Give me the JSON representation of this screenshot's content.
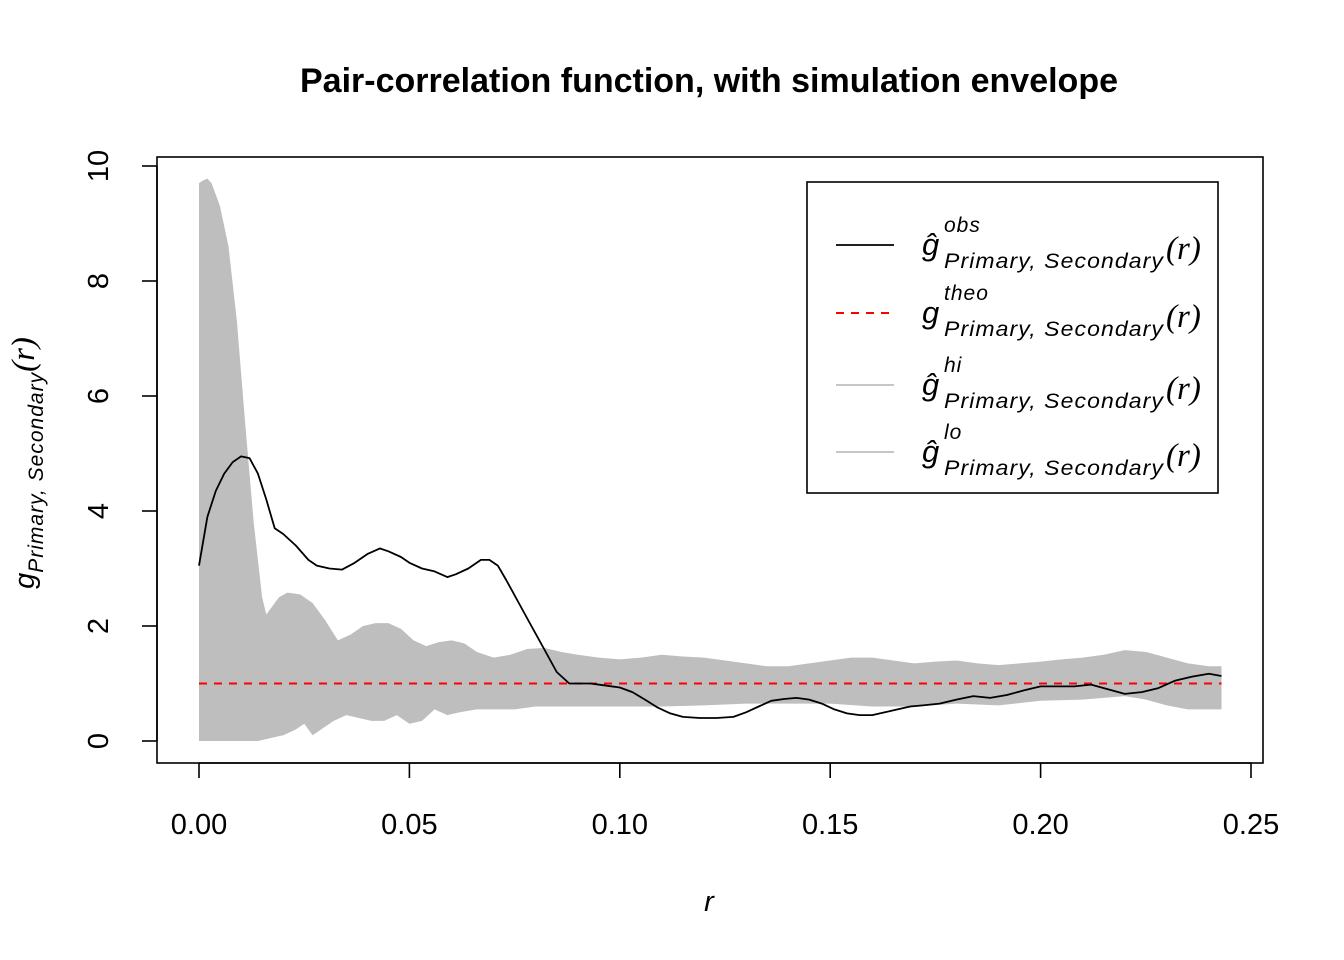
{
  "chart_data": {
    "type": "line",
    "title": "Pair-correlation function, with simulation envelope",
    "xlabel": "r",
    "ylabel": {
      "main": "g",
      "sub": "Primary, Secondary",
      "arg": "(r)"
    },
    "xlim": [
      0,
      0.25
    ],
    "ylim": [
      0,
      10
    ],
    "x_ticks": [
      "0.00",
      "0.05",
      "0.10",
      "0.15",
      "0.20",
      "0.25"
    ],
    "y_ticks": [
      "0",
      "2",
      "4",
      "6",
      "8",
      "10"
    ],
    "grid": false,
    "legend_position": "top-right",
    "colors": {
      "obs": "#000000",
      "theo": "#ff0000",
      "envelope": "#bebebe"
    },
    "legend": [
      {
        "key": "obs",
        "main": "ĝ",
        "sup": "obs",
        "sub": "Primary, Secondary",
        "arg": "(r)",
        "line": "solid",
        "color": "#000000"
      },
      {
        "key": "theo",
        "main": "g",
        "sup": "theo",
        "sub": "Primary, Secondary",
        "arg": "(r)",
        "line": "dashed",
        "color": "#ff0000"
      },
      {
        "key": "hi",
        "main": "ĝ",
        "sup": "hi",
        "sub": "Primary, Secondary",
        "arg": "(r)",
        "line": "solid",
        "color": "#bebebe"
      },
      {
        "key": "lo",
        "main": "ĝ",
        "sup": "lo",
        "sub": "Primary, Secondary",
        "arg": "(r)",
        "line": "solid",
        "color": "#bebebe"
      }
    ],
    "series": [
      {
        "name": "obs",
        "x": [
          0.0,
          0.002,
          0.004,
          0.006,
          0.008,
          0.01,
          0.012,
          0.014,
          0.016,
          0.018,
          0.02,
          0.023,
          0.026,
          0.028,
          0.031,
          0.034,
          0.037,
          0.04,
          0.043,
          0.045,
          0.048,
          0.05,
          0.053,
          0.056,
          0.059,
          0.061,
          0.064,
          0.067,
          0.069,
          0.071,
          0.073,
          0.076,
          0.079,
          0.082,
          0.085,
          0.088,
          0.091,
          0.093,
          0.096,
          0.1,
          0.103,
          0.106,
          0.109,
          0.112,
          0.115,
          0.119,
          0.123,
          0.127,
          0.13,
          0.133,
          0.136,
          0.139,
          0.142,
          0.145,
          0.148,
          0.151,
          0.154,
          0.157,
          0.16,
          0.163,
          0.166,
          0.169,
          0.172,
          0.176,
          0.18,
          0.184,
          0.188,
          0.192,
          0.196,
          0.2,
          0.204,
          0.208,
          0.212,
          0.216,
          0.22,
          0.224,
          0.228,
          0.232,
          0.236,
          0.24,
          0.243
        ],
        "values": [
          3.05,
          3.9,
          4.35,
          4.65,
          4.85,
          4.95,
          4.92,
          4.65,
          4.2,
          3.7,
          3.6,
          3.4,
          3.15,
          3.05,
          3.0,
          2.98,
          3.1,
          3.25,
          3.35,
          3.3,
          3.2,
          3.1,
          3.0,
          2.95,
          2.85,
          2.9,
          3.0,
          3.15,
          3.15,
          3.05,
          2.8,
          2.4,
          2.0,
          1.6,
          1.2,
          1.0,
          1.0,
          1.0,
          0.97,
          0.93,
          0.85,
          0.72,
          0.58,
          0.48,
          0.42,
          0.4,
          0.4,
          0.42,
          0.5,
          0.6,
          0.7,
          0.73,
          0.75,
          0.72,
          0.65,
          0.55,
          0.48,
          0.45,
          0.45,
          0.5,
          0.55,
          0.6,
          0.62,
          0.65,
          0.72,
          0.78,
          0.75,
          0.8,
          0.88,
          0.95,
          0.95,
          0.95,
          0.98,
          0.9,
          0.82,
          0.85,
          0.92,
          1.05,
          1.12,
          1.17,
          1.13
        ]
      },
      {
        "name": "theo",
        "x": [
          0.0,
          0.243
        ],
        "values": [
          1.0,
          1.0
        ]
      },
      {
        "name": "hi",
        "x": [
          0.0,
          0.001,
          0.002,
          0.003,
          0.005,
          0.007,
          0.009,
          0.011,
          0.013,
          0.015,
          0.016,
          0.017,
          0.019,
          0.021,
          0.024,
          0.027,
          0.03,
          0.033,
          0.036,
          0.039,
          0.042,
          0.045,
          0.048,
          0.051,
          0.054,
          0.057,
          0.06,
          0.063,
          0.066,
          0.07,
          0.074,
          0.078,
          0.082,
          0.086,
          0.09,
          0.095,
          0.1,
          0.105,
          0.11,
          0.115,
          0.12,
          0.125,
          0.13,
          0.135,
          0.14,
          0.145,
          0.15,
          0.155,
          0.16,
          0.165,
          0.17,
          0.175,
          0.18,
          0.185,
          0.19,
          0.195,
          0.2,
          0.205,
          0.21,
          0.215,
          0.22,
          0.225,
          0.23,
          0.235,
          0.24,
          0.243
        ],
        "values": [
          9.7,
          9.75,
          9.78,
          9.7,
          9.3,
          8.6,
          7.3,
          5.5,
          3.8,
          2.5,
          2.2,
          2.3,
          2.5,
          2.58,
          2.55,
          2.4,
          2.1,
          1.75,
          1.85,
          2.0,
          2.05,
          2.05,
          1.95,
          1.75,
          1.65,
          1.72,
          1.75,
          1.7,
          1.55,
          1.45,
          1.5,
          1.6,
          1.62,
          1.55,
          1.5,
          1.45,
          1.42,
          1.45,
          1.5,
          1.47,
          1.45,
          1.4,
          1.35,
          1.3,
          1.3,
          1.35,
          1.4,
          1.45,
          1.45,
          1.4,
          1.35,
          1.38,
          1.4,
          1.35,
          1.32,
          1.35,
          1.38,
          1.42,
          1.45,
          1.5,
          1.58,
          1.55,
          1.45,
          1.35,
          1.3,
          1.3
        ]
      },
      {
        "name": "lo",
        "x": [
          0.0,
          0.005,
          0.01,
          0.014,
          0.017,
          0.02,
          0.023,
          0.025,
          0.027,
          0.029,
          0.032,
          0.035,
          0.038,
          0.041,
          0.044,
          0.047,
          0.05,
          0.053,
          0.056,
          0.059,
          0.062,
          0.066,
          0.07,
          0.075,
          0.08,
          0.085,
          0.09,
          0.095,
          0.1,
          0.11,
          0.12,
          0.13,
          0.14,
          0.15,
          0.16,
          0.17,
          0.18,
          0.19,
          0.2,
          0.21,
          0.215,
          0.22,
          0.225,
          0.23,
          0.235,
          0.24,
          0.243
        ],
        "values": [
          0.0,
          0.0,
          0.0,
          0.0,
          0.05,
          0.1,
          0.2,
          0.3,
          0.1,
          0.2,
          0.35,
          0.45,
          0.4,
          0.35,
          0.35,
          0.45,
          0.3,
          0.35,
          0.55,
          0.45,
          0.5,
          0.55,
          0.55,
          0.55,
          0.6,
          0.6,
          0.6,
          0.6,
          0.6,
          0.6,
          0.62,
          0.65,
          0.65,
          0.65,
          0.6,
          0.6,
          0.65,
          0.62,
          0.7,
          0.72,
          0.75,
          0.78,
          0.72,
          0.62,
          0.55,
          0.55,
          0.55
        ]
      }
    ]
  }
}
